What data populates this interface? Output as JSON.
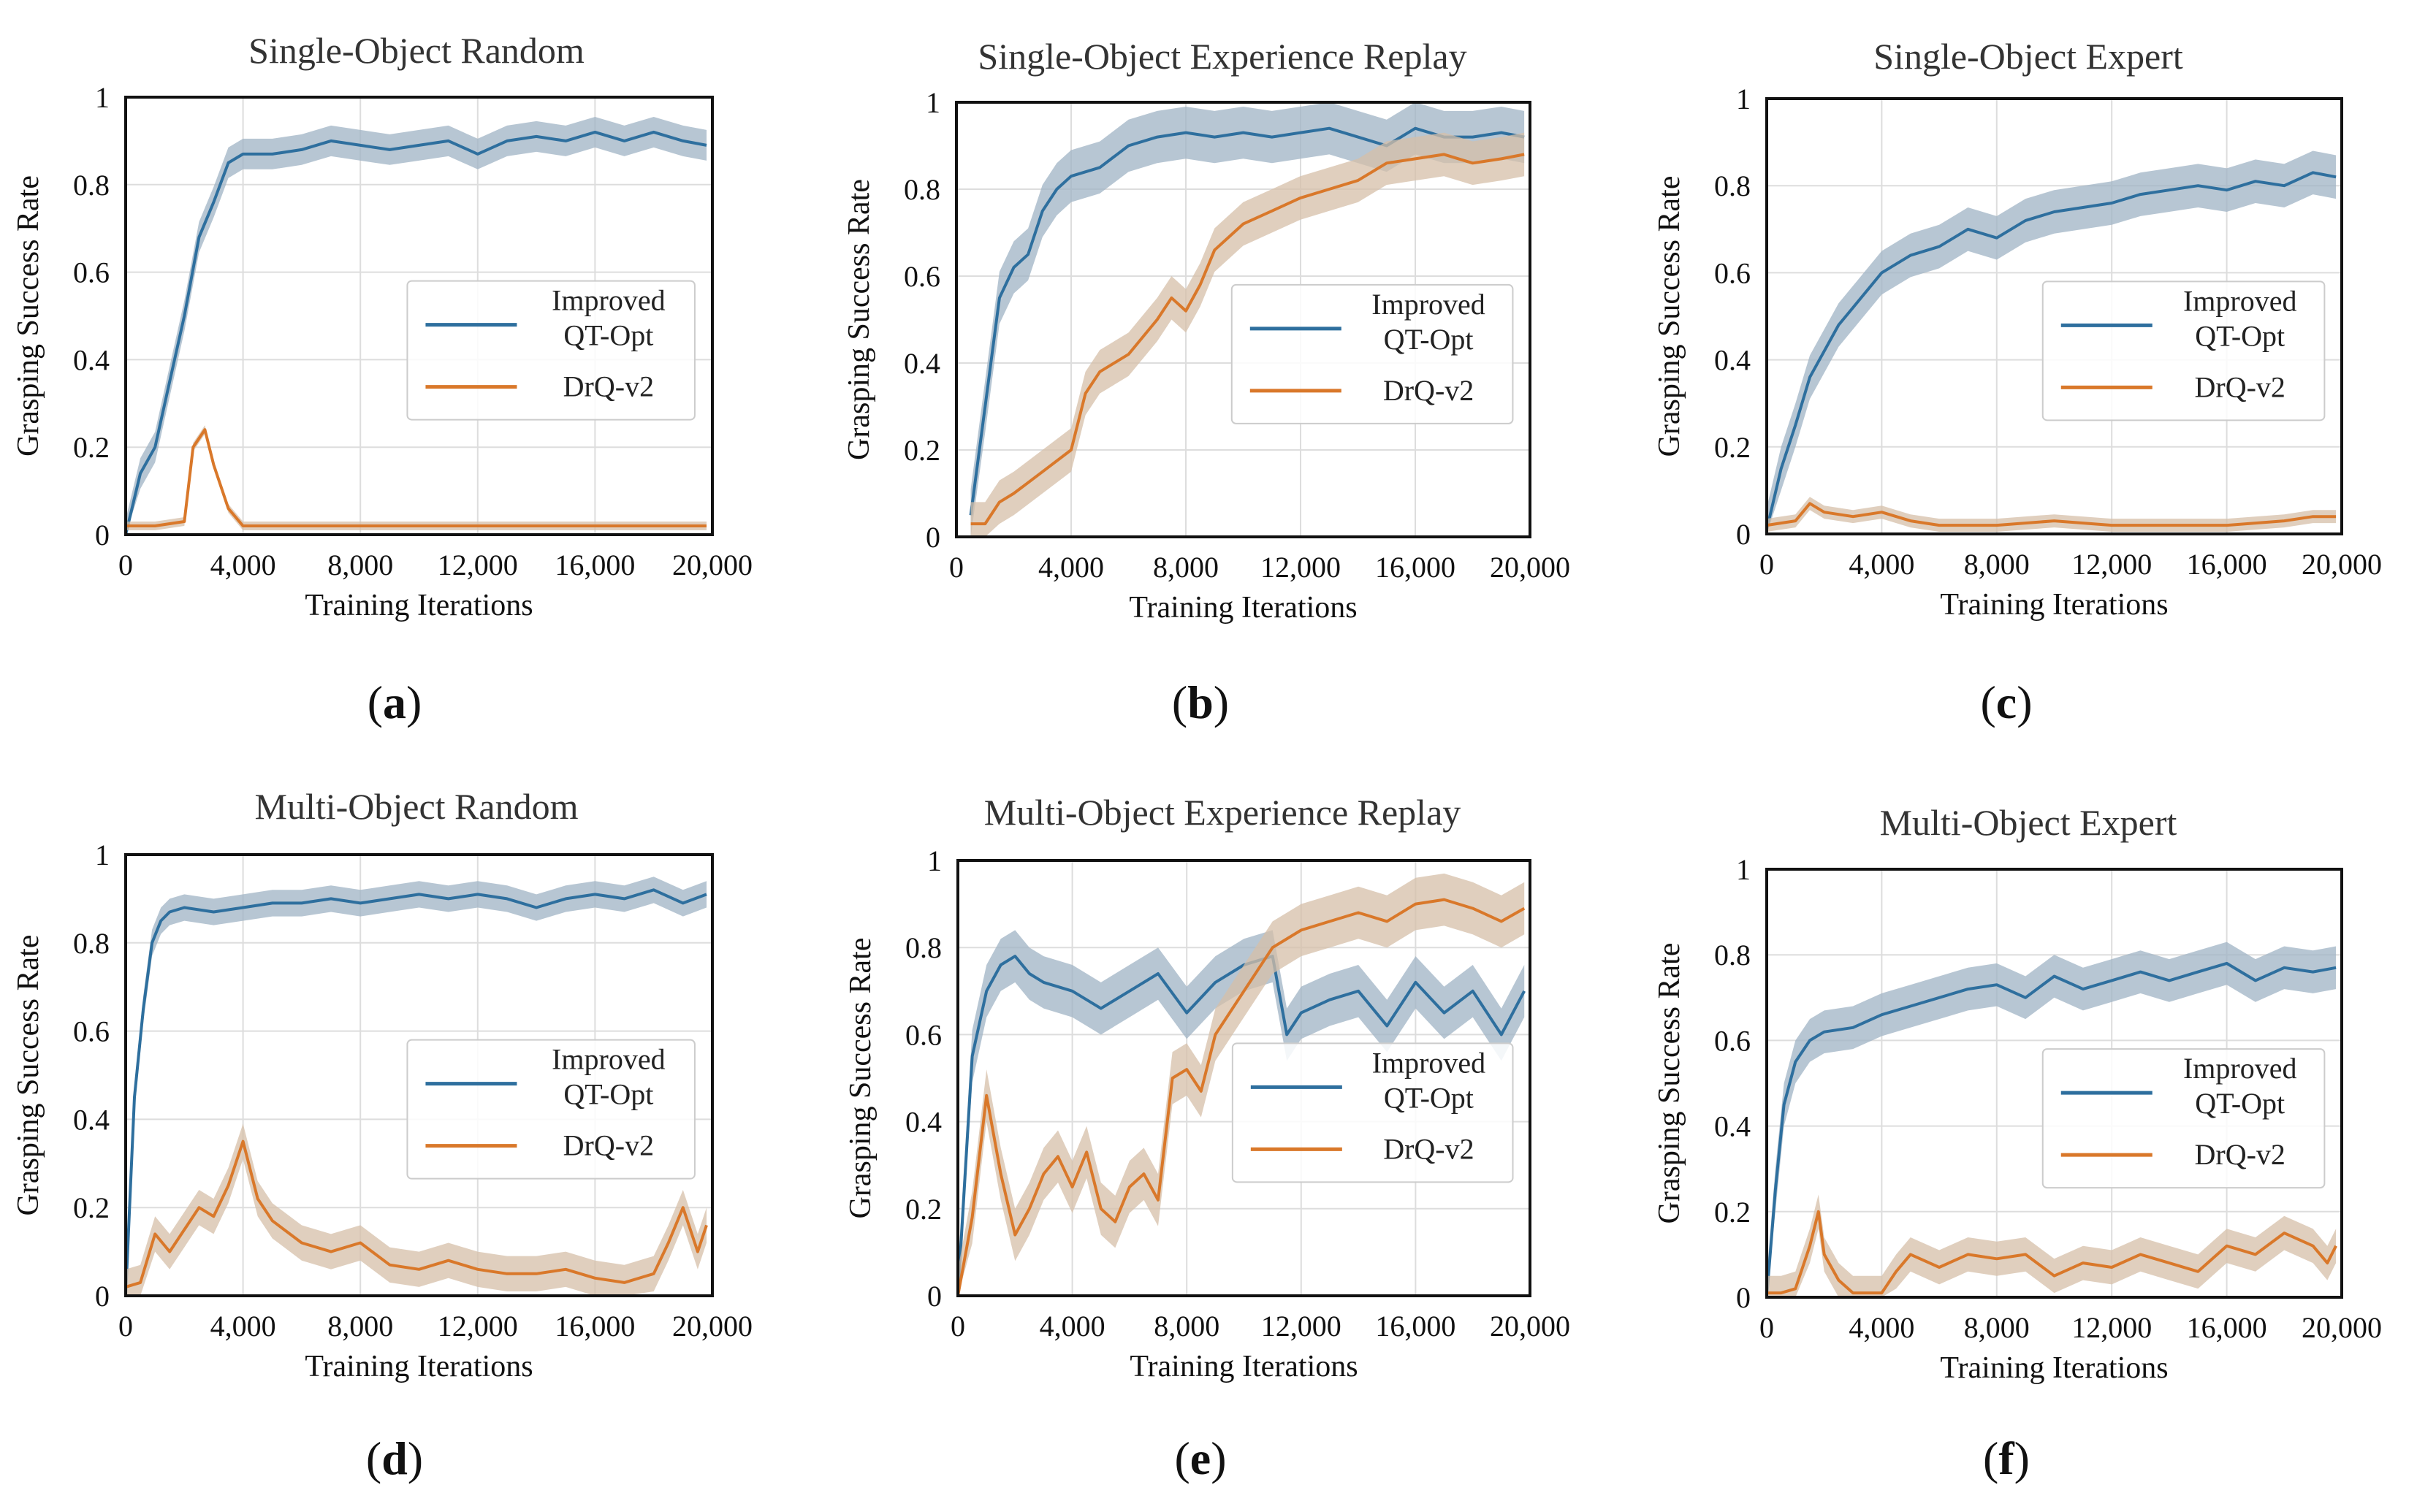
{
  "figure_caption_letters": [
    "(",
    "a",
    ")",
    "(",
    "b",
    ")",
    "(",
    "c",
    ")",
    "(",
    "d",
    ")",
    "(",
    "e",
    ")",
    "(",
    "f",
    ")"
  ],
  "colors": {
    "improved": "#2e6f9e",
    "drq": "#d9782a",
    "improved_band": "#9fb3c4",
    "drq_band": "#d6bfa8",
    "grid": "#dddddd"
  },
  "chart_data": [
    {
      "type": "line",
      "title": "Single-Object Random",
      "letter": "a",
      "xlabel": "Training Iterations",
      "ylabel": "Grasping Success Rate",
      "xlim": [
        0,
        20000
      ],
      "ylim": [
        0,
        1
      ],
      "xticks": [
        "0",
        "4,000",
        "8,000",
        "12,000",
        "16,000",
        "20,000"
      ],
      "yticks": [
        "0",
        "0.2",
        "0.4",
        "0.6",
        "0.8",
        "1"
      ],
      "legend": {
        "placement": "center-right",
        "entries": [
          "Improved QT-Opt",
          "DrQ-v2"
        ]
      },
      "series": [
        {
          "name": "Improved QT-Opt",
          "x": [
            0,
            500,
            1000,
            1500,
            2000,
            2500,
            3000,
            3500,
            4000,
            5000,
            6000,
            7000,
            8000,
            9000,
            10000,
            11000,
            12000,
            13000,
            14000,
            15000,
            16000,
            17000,
            18000,
            19000,
            19800
          ],
          "y": [
            0,
            0.14,
            0.2,
            0.35,
            0.5,
            0.68,
            0.76,
            0.85,
            0.87,
            0.87,
            0.88,
            0.9,
            0.89,
            0.88,
            0.89,
            0.9,
            0.87,
            0.9,
            0.91,
            0.9,
            0.92,
            0.9,
            0.92,
            0.9,
            0.89
          ],
          "band": 0.035
        },
        {
          "name": "DrQ-v2",
          "x": [
            0,
            1000,
            2000,
            2300,
            2700,
            3000,
            3500,
            4000,
            5000,
            6000,
            7000,
            8000,
            9000,
            12000,
            16000,
            19800
          ],
          "y": [
            0.02,
            0.02,
            0.03,
            0.2,
            0.24,
            0.16,
            0.06,
            0.02,
            0.02,
            0.02,
            0.02,
            0.02,
            0.02,
            0.02,
            0.02,
            0.02
          ],
          "band": 0.01
        }
      ]
    },
    {
      "type": "line",
      "title": "Single-Object Experience Replay",
      "letter": "b",
      "xlabel": "Training Iterations",
      "ylabel": "Grasping Success Rate",
      "xlim": [
        0,
        20000
      ],
      "ylim": [
        0,
        1
      ],
      "xticks": [
        "0",
        "4,000",
        "8,000",
        "12,000",
        "16,000",
        "20,000"
      ],
      "yticks": [
        "0",
        "0.2",
        "0.4",
        "0.6",
        "0.8",
        "1"
      ],
      "legend": {
        "placement": "center-right",
        "entries": [
          "Improved QT-Opt",
          "DrQ-v2"
        ]
      },
      "series": [
        {
          "name": "Improved QT-Opt",
          "x": [
            500,
            1000,
            1500,
            2000,
            2500,
            3000,
            3500,
            4000,
            5000,
            6000,
            7000,
            8000,
            9000,
            10000,
            11000,
            12000,
            13000,
            14000,
            15000,
            16000,
            17000,
            18000,
            19000,
            19800
          ],
          "y": [
            0.05,
            0.3,
            0.55,
            0.62,
            0.65,
            0.75,
            0.8,
            0.83,
            0.85,
            0.9,
            0.92,
            0.93,
            0.92,
            0.93,
            0.92,
            0.93,
            0.94,
            0.92,
            0.9,
            0.94,
            0.92,
            0.92,
            0.93,
            0.92
          ],
          "band": 0.06
        },
        {
          "name": "DrQ-v2",
          "x": [
            500,
            1000,
            1500,
            2000,
            3000,
            4000,
            4500,
            5000,
            6000,
            7000,
            7500,
            8000,
            8500,
            9000,
            10000,
            11000,
            12000,
            13000,
            14000,
            15000,
            16000,
            17000,
            18000,
            19000,
            19800
          ],
          "y": [
            0.03,
            0.03,
            0.08,
            0.1,
            0.15,
            0.2,
            0.33,
            0.38,
            0.42,
            0.5,
            0.55,
            0.52,
            0.58,
            0.66,
            0.72,
            0.75,
            0.78,
            0.8,
            0.82,
            0.86,
            0.87,
            0.88,
            0.86,
            0.87,
            0.88
          ],
          "band": 0.05
        }
      ]
    },
    {
      "type": "line",
      "title": "Single-Object Expert",
      "letter": "c",
      "xlabel": "Training Iterations",
      "ylabel": "Grasping Success Rate",
      "xlim": [
        0,
        20000
      ],
      "ylim": [
        0,
        1
      ],
      "xticks": [
        "0",
        "4,000",
        "8,000",
        "12,000",
        "16,000",
        "20,000"
      ],
      "yticks": [
        "0",
        "0.2",
        "0.4",
        "0.6",
        "0.8",
        "1"
      ],
      "legend": {
        "placement": "center-right",
        "entries": [
          "Improved QT-Opt",
          "DrQ-v2"
        ]
      },
      "series": [
        {
          "name": "Improved QT-Opt",
          "x": [
            0,
            500,
            1000,
            1500,
            2000,
            2500,
            3000,
            4000,
            5000,
            6000,
            7000,
            8000,
            9000,
            10000,
            11000,
            12000,
            13000,
            14000,
            15000,
            16000,
            17000,
            18000,
            19000,
            19800
          ],
          "y": [
            0.01,
            0.15,
            0.25,
            0.36,
            0.42,
            0.48,
            0.52,
            0.6,
            0.64,
            0.66,
            0.7,
            0.68,
            0.72,
            0.74,
            0.75,
            0.76,
            0.78,
            0.79,
            0.8,
            0.79,
            0.81,
            0.8,
            0.83,
            0.82
          ],
          "band": 0.05
        },
        {
          "name": "DrQ-v2",
          "x": [
            0,
            1000,
            1500,
            2000,
            3000,
            4000,
            5000,
            6000,
            8000,
            10000,
            12000,
            14000,
            16000,
            18000,
            19000,
            19800
          ],
          "y": [
            0.02,
            0.03,
            0.07,
            0.05,
            0.04,
            0.05,
            0.03,
            0.02,
            0.02,
            0.03,
            0.02,
            0.02,
            0.02,
            0.03,
            0.04,
            0.04
          ],
          "band": 0.015
        }
      ]
    },
    {
      "type": "line",
      "title": "Multi-Object Random",
      "letter": "d",
      "xlabel": "Training Iterations",
      "ylabel": "Grasping Success Rate",
      "xlim": [
        0,
        20000
      ],
      "ylim": [
        0,
        1
      ],
      "xticks": [
        "0",
        "4,000",
        "8,000",
        "12,000",
        "16,000",
        "20,000"
      ],
      "yticks": [
        "0",
        "0.2",
        "0.4",
        "0.6",
        "0.8",
        "1"
      ],
      "legend": {
        "placement": "center-right",
        "entries": [
          "Improved QT-Opt",
          "DrQ-v2"
        ]
      },
      "series": [
        {
          "name": "Improved QT-Opt",
          "x": [
            0,
            300,
            600,
            900,
            1200,
            1500,
            2000,
            3000,
            4000,
            5000,
            6000,
            7000,
            8000,
            9000,
            10000,
            11000,
            12000,
            13000,
            14000,
            15000,
            16000,
            17000,
            18000,
            19000,
            19800
          ],
          "y": [
            0,
            0.45,
            0.65,
            0.8,
            0.85,
            0.87,
            0.88,
            0.87,
            0.88,
            0.89,
            0.89,
            0.9,
            0.89,
            0.9,
            0.91,
            0.9,
            0.91,
            0.9,
            0.88,
            0.9,
            0.91,
            0.9,
            0.92,
            0.89,
            0.91
          ],
          "band": 0.03
        },
        {
          "name": "DrQ-v2",
          "x": [
            0,
            500,
            1000,
            1500,
            2000,
            2500,
            3000,
            3500,
            4000,
            4500,
            5000,
            6000,
            7000,
            8000,
            9000,
            10000,
            11000,
            12000,
            13000,
            14000,
            15000,
            16000,
            17000,
            18000,
            18500,
            19000,
            19500,
            19800
          ],
          "y": [
            0.02,
            0.03,
            0.14,
            0.1,
            0.15,
            0.2,
            0.18,
            0.25,
            0.35,
            0.22,
            0.17,
            0.12,
            0.1,
            0.12,
            0.07,
            0.06,
            0.08,
            0.06,
            0.05,
            0.05,
            0.06,
            0.04,
            0.03,
            0.05,
            0.12,
            0.2,
            0.1,
            0.16
          ],
          "band": 0.04
        }
      ]
    },
    {
      "type": "line",
      "title": "Multi-Object Experience Replay",
      "letter": "e",
      "xlabel": "Training Iterations",
      "ylabel": "Grasping Success Rate",
      "xlim": [
        0,
        20000
      ],
      "ylim": [
        0,
        1
      ],
      "xticks": [
        "0",
        "4,000",
        "8,000",
        "12,000",
        "16,000",
        "20,000"
      ],
      "yticks": [
        "0",
        "0.2",
        "0.4",
        "0.6",
        "0.8",
        "1"
      ],
      "legend": {
        "placement": "center-right",
        "entries": [
          "Improved QT-Opt",
          "DrQ-v2"
        ]
      },
      "series": [
        {
          "name": "Improved QT-Opt",
          "x": [
            0,
            500,
            1000,
            1500,
            2000,
            2500,
            3000,
            4000,
            5000,
            6000,
            7000,
            8000,
            9000,
            10000,
            11000,
            11500,
            12000,
            13000,
            14000,
            15000,
            16000,
            17000,
            18000,
            19000,
            19800
          ],
          "y": [
            0,
            0.55,
            0.7,
            0.76,
            0.78,
            0.74,
            0.72,
            0.7,
            0.66,
            0.7,
            0.74,
            0.65,
            0.72,
            0.76,
            0.78,
            0.6,
            0.65,
            0.68,
            0.7,
            0.62,
            0.72,
            0.65,
            0.7,
            0.6,
            0.7
          ],
          "band": 0.06
        },
        {
          "name": "DrQ-v2",
          "x": [
            0,
            500,
            1000,
            1500,
            2000,
            2500,
            3000,
            3500,
            4000,
            4500,
            5000,
            5500,
            6000,
            6500,
            7000,
            7500,
            8000,
            8500,
            9000,
            10000,
            11000,
            12000,
            13000,
            14000,
            15000,
            16000,
            17000,
            18000,
            19000,
            19800
          ],
          "y": [
            0,
            0.18,
            0.46,
            0.28,
            0.14,
            0.2,
            0.28,
            0.32,
            0.25,
            0.33,
            0.2,
            0.17,
            0.25,
            0.28,
            0.22,
            0.5,
            0.52,
            0.47,
            0.6,
            0.7,
            0.8,
            0.84,
            0.86,
            0.88,
            0.86,
            0.9,
            0.91,
            0.89,
            0.86,
            0.89
          ],
          "band": 0.06
        }
      ]
    },
    {
      "type": "line",
      "title": "Multi-Object Expert",
      "letter": "f",
      "xlabel": "Training Iterations",
      "ylabel": "Grasping Success Rate",
      "xlim": [
        0,
        20000
      ],
      "ylim": [
        0,
        1
      ],
      "xticks": [
        "0",
        "4,000",
        "8,000",
        "12,000",
        "16,000",
        "20,000"
      ],
      "yticks": [
        "0",
        "0.2",
        "0.4",
        "0.6",
        "0.8",
        "1"
      ],
      "legend": {
        "placement": "center-right",
        "entries": [
          "Improved QT-Opt",
          "DrQ-v2"
        ]
      },
      "series": [
        {
          "name": "Improved QT-Opt",
          "x": [
            0,
            300,
            600,
            1000,
            1500,
            2000,
            3000,
            4000,
            5000,
            6000,
            7000,
            8000,
            9000,
            10000,
            11000,
            12000,
            13000,
            14000,
            15000,
            16000,
            17000,
            18000,
            19000,
            19800
          ],
          "y": [
            0,
            0.25,
            0.45,
            0.55,
            0.6,
            0.62,
            0.63,
            0.66,
            0.68,
            0.7,
            0.72,
            0.73,
            0.7,
            0.75,
            0.72,
            0.74,
            0.76,
            0.74,
            0.76,
            0.78,
            0.74,
            0.77,
            0.76,
            0.77
          ],
          "band": 0.05
        },
        {
          "name": "DrQ-v2",
          "x": [
            0,
            500,
            1000,
            1500,
            1800,
            2000,
            2500,
            3000,
            3500,
            4000,
            4500,
            5000,
            6000,
            7000,
            8000,
            9000,
            10000,
            11000,
            12000,
            13000,
            14000,
            15000,
            16000,
            17000,
            18000,
            19000,
            19500,
            19800
          ],
          "y": [
            0.01,
            0.01,
            0.02,
            0.12,
            0.2,
            0.1,
            0.04,
            0.01,
            0.01,
            0.01,
            0.06,
            0.1,
            0.07,
            0.1,
            0.09,
            0.1,
            0.05,
            0.08,
            0.07,
            0.1,
            0.08,
            0.06,
            0.12,
            0.1,
            0.15,
            0.12,
            0.08,
            0.12
          ],
          "band": 0.04
        }
      ]
    }
  ]
}
